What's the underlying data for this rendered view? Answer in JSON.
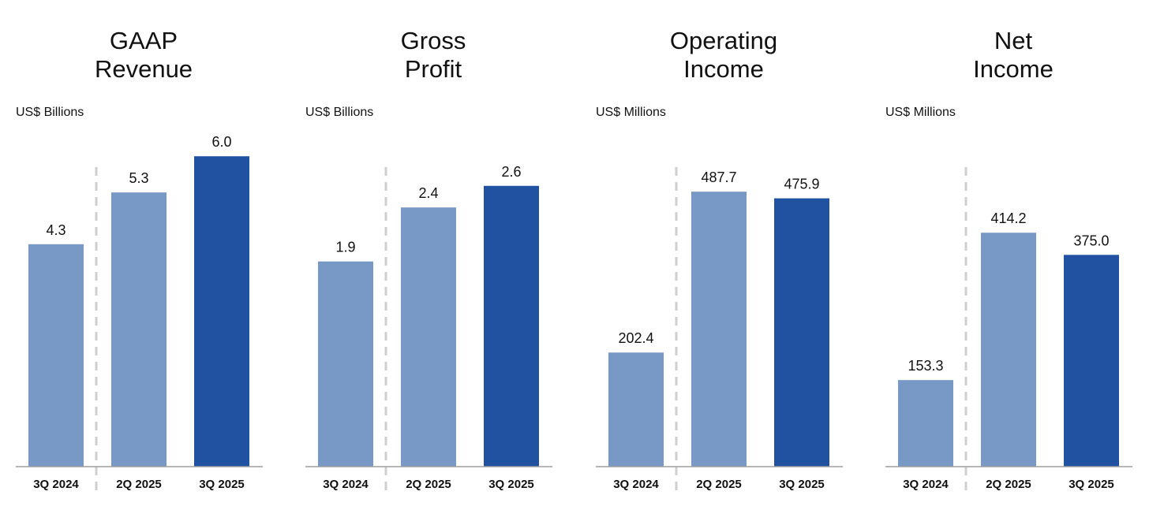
{
  "colors": {
    "bar_light": "#7898C6",
    "bar_dark": "#2152A1",
    "axis": "#9E9E9E",
    "divider": "#CFCFCF"
  },
  "chart_data": [
    {
      "type": "bar",
      "title": "GAAP Revenue",
      "title_lines": [
        "GAAP",
        "Revenue"
      ],
      "unit": "US$ Billions",
      "categories": [
        "3Q 2024",
        "2Q 2025",
        "3Q 2025"
      ],
      "values": [
        4.3,
        5.3,
        6.0
      ],
      "value_labels": [
        "4.3",
        "5.3",
        "6.0"
      ],
      "highlight_index": 2,
      "ylim": [
        0,
        6.43
      ]
    },
    {
      "type": "bar",
      "title": "Gross Profit",
      "title_lines": [
        "Gross",
        "Profit"
      ],
      "unit": "US$ Billions",
      "categories": [
        "3Q 2024",
        "2Q 2025",
        "3Q 2025"
      ],
      "values": [
        1.9,
        2.4,
        2.6
      ],
      "value_labels": [
        "1.9",
        "2.4",
        "2.6"
      ],
      "highlight_index": 2,
      "ylim": [
        0,
        3.08
      ]
    },
    {
      "type": "bar",
      "title": "Operating Income",
      "title_lines": [
        "Operating",
        "Income"
      ],
      "unit": "US$ Millions",
      "categories": [
        "3Q 2024",
        "2Q 2025",
        "3Q 2025"
      ],
      "values": [
        202.4,
        487.7,
        475.9
      ],
      "value_labels": [
        "202.4",
        "487.7",
        "475.9"
      ],
      "highlight_index": 2,
      "ylim": [
        0,
        590
      ]
    },
    {
      "type": "bar",
      "title": "Net Income",
      "title_lines": [
        "Net",
        "Income"
      ],
      "unit": "US$ Millions",
      "categories": [
        "3Q 2024",
        "2Q 2025",
        "3Q 2025"
      ],
      "values": [
        153.3,
        414.2,
        375.0
      ],
      "value_labels": [
        "153.3",
        "414.2",
        "375.0"
      ],
      "highlight_index": 2,
      "ylim": [
        0,
        589
      ]
    }
  ]
}
